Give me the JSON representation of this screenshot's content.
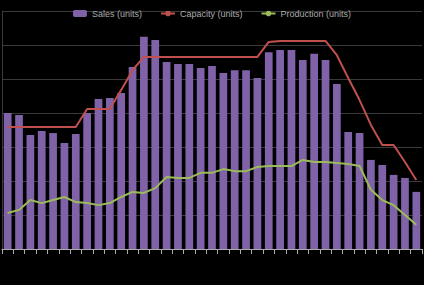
{
  "chart_data": {
    "type": "bar",
    "categories": [
      null,
      null,
      null,
      null,
      null,
      null,
      null,
      null,
      null,
      null,
      null,
      null,
      null,
      null,
      null,
      null,
      null,
      null,
      null,
      null,
      null,
      null,
      null,
      null,
      null,
      null,
      null,
      null,
      null,
      null,
      null,
      null,
      null,
      null,
      null,
      null,
      null
    ],
    "series": [
      {
        "name": "Sales (units)",
        "type": "bar",
        "color": "#7f62a8",
        "values": [
          4.0,
          3.94,
          3.35,
          3.47,
          3.41,
          3.12,
          3.38,
          4.0,
          4.41,
          4.44,
          4.59,
          5.35,
          6.24,
          6.15,
          5.5,
          5.44,
          5.44,
          5.32,
          5.38,
          5.18,
          5.26,
          5.26,
          5.03,
          5.79,
          5.85,
          5.85,
          5.56,
          5.74,
          5.56,
          4.85,
          3.44,
          3.41,
          2.62,
          2.47,
          2.18,
          2.09,
          1.68
        ]
      },
      {
        "name": "Capacity (units)",
        "type": "line",
        "color": "#c0504d",
        "values": [
          3.59,
          3.59,
          3.59,
          3.59,
          3.59,
          3.59,
          3.59,
          4.12,
          4.12,
          4.12,
          4.68,
          5.26,
          5.65,
          5.65,
          5.65,
          5.65,
          5.65,
          5.65,
          5.65,
          5.65,
          5.65,
          5.65,
          5.65,
          6.09,
          6.12,
          6.12,
          6.12,
          6.12,
          6.12,
          5.7,
          5.03,
          4.38,
          3.65,
          3.06,
          3.06,
          2.56,
          2.03
        ]
      },
      {
        "name": "Production (units)",
        "type": "line",
        "color": "#9bbb59",
        "values": [
          1.06,
          1.15,
          1.44,
          1.35,
          1.44,
          1.53,
          1.38,
          1.35,
          1.29,
          1.35,
          1.53,
          1.68,
          1.65,
          1.79,
          2.12,
          2.09,
          2.09,
          2.24,
          2.24,
          2.35,
          2.29,
          2.29,
          2.41,
          2.44,
          2.44,
          2.44,
          2.62,
          2.56,
          2.56,
          2.53,
          2.5,
          2.44,
          1.74,
          1.44,
          1.29,
          1.0,
          0.71
        ]
      }
    ],
    "ylim": [
      0,
      7
    ],
    "yticks": [
      0,
      1,
      2,
      3,
      4,
      5,
      6,
      7
    ],
    "grid": true,
    "legend": "top",
    "tick_labels": false
  }
}
